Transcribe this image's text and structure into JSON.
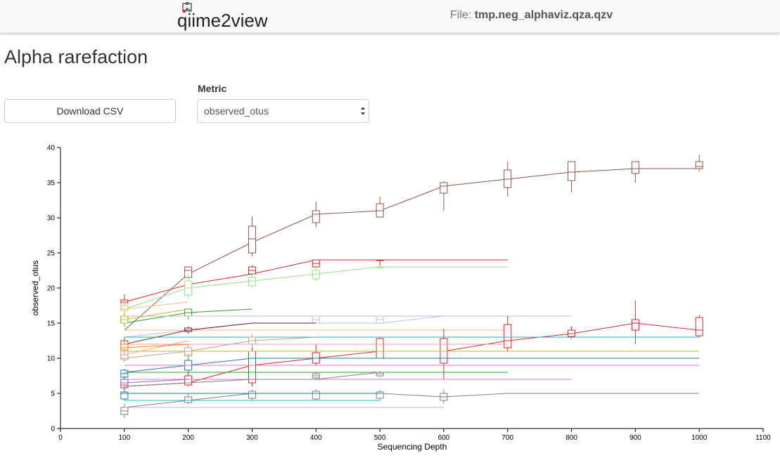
{
  "header": {
    "logo_text": "qiime2view",
    "file_prefix": "File:",
    "file_name": "tmp.neg_alphaviz.qza.qzv"
  },
  "page_title": "Alpha rarefaction",
  "controls": {
    "download_label": "Download CSV",
    "metric_label": "Metric",
    "metric_value": "observed_otus"
  },
  "chart_data": {
    "type": "line",
    "xlabel": "Sequencing Depth",
    "ylabel": "observed_otus",
    "xlim": [
      0,
      1100
    ],
    "ylim": [
      0,
      40
    ],
    "xticks": [
      0,
      100,
      200,
      300,
      400,
      500,
      600,
      700,
      800,
      900,
      1000,
      1100
    ],
    "yticks": [
      0,
      5,
      10,
      15,
      20,
      25,
      30,
      35,
      40
    ],
    "grid": false,
    "box_width": 10,
    "series": [
      {
        "color": "#8c564b",
        "x": [
          100,
          200,
          300,
          400,
          500,
          600,
          700,
          800,
          900,
          1000
        ],
        "y": [
          14,
          22,
          26.5,
          30.5,
          31,
          34.5,
          35.5,
          36.5,
          37,
          37
        ],
        "boxes": [
          [
            null,
            null,
            null,
            null,
            null
          ],
          [
            null,
            21.5,
            22.5,
            23,
            null
          ],
          [
            24.5,
            25,
            27,
            28.8,
            30.2
          ],
          [
            28.7,
            29.3,
            30.5,
            31,
            32.3
          ],
          [
            30,
            30.1,
            31,
            32,
            33
          ],
          [
            31,
            33.5,
            34.5,
            35,
            35.2
          ],
          [
            33,
            34.3,
            35.5,
            36.8,
            38
          ],
          [
            33.6,
            35.3,
            36.5,
            38,
            38
          ],
          [
            35,
            36.3,
            37,
            38,
            38
          ],
          [
            36.6,
            37,
            37.3,
            38,
            39
          ]
        ]
      },
      {
        "color": "#d62728",
        "x": [
          100,
          200,
          300,
          400,
          500,
          600,
          700
        ],
        "y": [
          18,
          20.5,
          22,
          24,
          24,
          24,
          24
        ],
        "boxes": [
          [
            17.5,
            17.8,
            18,
            18.3,
            19.1
          ],
          [
            null,
            null,
            null,
            null,
            null
          ],
          [
            21.5,
            22,
            22.5,
            23,
            23.2
          ],
          [
            null,
            23,
            23.5,
            24,
            24
          ],
          [
            23,
            24,
            24,
            24,
            24
          ],
          [
            null,
            null,
            null,
            null,
            null
          ],
          [
            null,
            null,
            null,
            null,
            null
          ]
        ]
      },
      {
        "color": "#98df8a",
        "x": [
          100,
          200,
          300,
          400,
          500,
          600,
          700
        ],
        "y": [
          17,
          20,
          21,
          22,
          23,
          23,
          23
        ],
        "boxes": [
          [
            16.5,
            16.8,
            17,
            17.8,
            18
          ],
          [
            18.5,
            19,
            20,
            21,
            22
          ],
          [
            20,
            20.3,
            21,
            21.5,
            22
          ],
          [
            21,
            21.3,
            22,
            22.5,
            23
          ],
          [
            22.8,
            23,
            23,
            23,
            23.2
          ],
          [
            null,
            null,
            null,
            null,
            null
          ],
          [
            null,
            null,
            null,
            null,
            null
          ]
        ]
      },
      {
        "color": "#ffbb78",
        "x": [
          100,
          200
        ],
        "y": [
          17,
          18
        ],
        "boxes": [
          [
            16.5,
            16.8,
            17,
            17.5,
            18
          ],
          [
            null,
            null,
            null,
            null,
            null
          ]
        ]
      },
      {
        "color": "#2ca02c",
        "x": [
          100,
          200,
          300
        ],
        "y": [
          15,
          16.5,
          17
        ],
        "boxes": [
          [
            14.5,
            15,
            15.5,
            16,
            16.5
          ],
          [
            15.5,
            16,
            16.5,
            17,
            17
          ]
        ]
      },
      {
        "color": "#c5b0d5",
        "x": [
          100,
          200,
          300,
          400,
          500,
          600,
          700,
          800
        ],
        "y": [
          16,
          16,
          16,
          16,
          16,
          16,
          16,
          16
        ],
        "boxes": []
      },
      {
        "color": "#aec7e8",
        "x": [
          100,
          200,
          300,
          400,
          500,
          600,
          700,
          800
        ],
        "y": [
          13,
          14,
          15,
          15,
          15,
          16,
          16,
          16
        ],
        "boxes": [
          [
            null,
            null,
            null,
            null,
            null
          ],
          [
            null,
            null,
            null,
            null,
            null
          ],
          [
            null,
            null,
            null,
            null,
            null
          ],
          [
            15,
            15,
            15.5,
            16,
            16
          ],
          [
            15,
            15,
            15.5,
            16,
            16
          ]
        ]
      },
      {
        "color": "#ffbb78",
        "x": [
          100,
          200,
          300,
          400,
          500,
          600,
          700
        ],
        "y": [
          14,
          14,
          14,
          14,
          14,
          14,
          14
        ],
        "boxes": []
      },
      {
        "color": "#7f0f3f",
        "x": [
          100,
          200,
          300,
          400
        ],
        "y": [
          12,
          14,
          15,
          15
        ],
        "boxes": [
          [
            null,
            null,
            null,
            null,
            null
          ],
          [
            13.5,
            13.8,
            14,
            14.3,
            14.5
          ]
        ]
      },
      {
        "color": "#d62728",
        "x": [
          100,
          200,
          300,
          400,
          500,
          600,
          700,
          800,
          900,
          1000
        ],
        "y": [
          6,
          6.5,
          9,
          10,
          11,
          11,
          12.5,
          13.5,
          15,
          14
        ],
        "boxes": [
          [
            5.5,
            5.8,
            6.3,
            7,
            7.3
          ],
          [
            6,
            6.2,
            7,
            7.5,
            8
          ],
          [
            6,
            6.5,
            9,
            11,
            11.5
          ],
          [
            9,
            9.3,
            10,
            10.8,
            12
          ],
          [
            10,
            10,
            11,
            12.8,
            13
          ],
          [
            7,
            9.3,
            11,
            12.8,
            14.2
          ],
          [
            11,
            11.5,
            12.5,
            14.8,
            16
          ],
          [
            12.8,
            13.1,
            13.5,
            14,
            14.5
          ],
          [
            12,
            14,
            15,
            15.5,
            18.2
          ],
          [
            13,
            13.2,
            14,
            15.8,
            16.2
          ]
        ]
      },
      {
        "color": "#bcbd22",
        "x": [
          100,
          200,
          300,
          400,
          500,
          600,
          700,
          800,
          900,
          1000
        ],
        "y": [
          11,
          11,
          11,
          11,
          11,
          11,
          11,
          11,
          11,
          11
        ],
        "boxes": [
          [
            10.5,
            10.8,
            11,
            11.5,
            12
          ],
          [
            10,
            10.3,
            10.5,
            11,
            11
          ]
        ]
      },
      {
        "color": "#17becf",
        "x": [
          100,
          200,
          300,
          400,
          500,
          600,
          700,
          800,
          900,
          1000
        ],
        "y": [
          13,
          13,
          13,
          13,
          13,
          13,
          13,
          13,
          13,
          13
        ],
        "boxes": []
      },
      {
        "color": "#1f77b4",
        "x": [
          100,
          200,
          300,
          400,
          500,
          600,
          700,
          800,
          900,
          1000
        ],
        "y": [
          8,
          9,
          10,
          10,
          10,
          10,
          10,
          10,
          10,
          10
        ],
        "boxes": [
          [
            7,
            7.3,
            7.8,
            8.3,
            8.5
          ],
          [
            8,
            8.3,
            9,
            9.7,
            10.2
          ]
        ]
      },
      {
        "color": "#ff9896",
        "x": [
          100,
          200,
          300,
          400,
          500,
          600,
          700
        ],
        "y": [
          12,
          12,
          12,
          12,
          12,
          12,
          12
        ],
        "boxes": []
      },
      {
        "color": "#e377c2",
        "x": [
          100,
          200,
          300,
          400,
          500,
          600,
          700,
          800,
          900,
          1000
        ],
        "y": [
          9,
          9,
          9,
          9,
          9,
          9,
          9,
          9,
          9,
          9
        ],
        "boxes": []
      },
      {
        "color": "#2ca02c",
        "x": [
          100,
          200,
          300,
          400,
          500,
          600,
          700
        ],
        "y": [
          8,
          8,
          8,
          8,
          8,
          8,
          8
        ],
        "boxes": []
      },
      {
        "color": "#e377c2",
        "x": [
          100,
          200,
          300,
          400,
          500,
          600,
          700,
          800
        ],
        "y": [
          7,
          7,
          7,
          7,
          7,
          7,
          7,
          7
        ],
        "boxes": []
      },
      {
        "color": "#7f7f7f",
        "x": [
          100,
          200,
          300,
          400,
          500,
          600,
          700,
          800,
          900,
          1000
        ],
        "y": [
          3,
          4,
          5,
          5,
          5,
          4.5,
          5,
          5,
          5,
          5
        ],
        "boxes": [
          [
            1.5,
            2,
            2.5,
            3,
            3.5
          ],
          [
            3.5,
            3.7,
            4,
            4.5,
            5
          ],
          [
            4,
            4.3,
            5,
            5.3,
            5.5
          ],
          [
            4,
            4.2,
            5,
            5.3,
            5.5
          ],
          [
            4,
            4.3,
            5,
            5.2,
            5.5
          ],
          [
            3.5,
            4,
            4.5,
            5,
            5.5
          ]
        ]
      },
      {
        "color": "#1f77b4",
        "x": [
          100,
          200,
          300,
          400,
          500
        ],
        "y": [
          5,
          5,
          5,
          5,
          5
        ],
        "boxes": [
          [
            4,
            4.2,
            5,
            5.2,
            5.5
          ]
        ]
      },
      {
        "color": "#17becf",
        "x": [
          100,
          200,
          300,
          400,
          500
        ],
        "y": [
          4,
          4,
          4,
          4,
          4
        ],
        "boxes": []
      },
      {
        "color": "#c5b0d5",
        "x": [
          100,
          200,
          300,
          400,
          500,
          600
        ],
        "y": [
          3,
          3,
          3,
          3,
          3,
          3
        ],
        "boxes": []
      },
      {
        "color": "#7f7f7f",
        "x": [
          100,
          200,
          300,
          400,
          500
        ],
        "y": [
          6,
          6.5,
          7,
          7,
          8
        ],
        "boxes": [
          [
            null,
            null,
            null,
            null,
            null
          ],
          [
            null,
            null,
            null,
            null,
            null
          ],
          [
            null,
            null,
            null,
            null,
            null
          ],
          [
            7,
            7.2,
            7.5,
            7.8,
            8
          ],
          [
            7.3,
            7.5,
            7.8,
            8,
            8.2
          ]
        ]
      },
      {
        "color": "#8c564b",
        "x": [
          100,
          200
        ],
        "y": [
          12,
          14
        ],
        "boxes": [
          [
            11,
            11.5,
            12,
            12.5,
            13
          ]
        ]
      },
      {
        "color": "#ff9896",
        "x": [
          100,
          200
        ],
        "y": [
          10.5,
          12.5
        ],
        "boxes": [
          [
            9.5,
            10,
            10.5,
            11,
            11.5
          ]
        ]
      },
      {
        "color": "#bcbd22",
        "x": [
          100,
          200
        ],
        "y": [
          15.5,
          17
        ],
        "boxes": [
          [
            14.5,
            15,
            15.5,
            16,
            16.5
          ]
        ]
      },
      {
        "color": "#c49c94",
        "x": [
          100,
          200,
          300,
          400
        ],
        "y": [
          10,
          11,
          12.5,
          13
        ],
        "boxes": [
          [
            9.5,
            9.8,
            10,
            10.5,
            11
          ],
          [
            10,
            10.5,
            11,
            11.5,
            12
          ],
          [
            11.5,
            12,
            12.5,
            13,
            13.5
          ]
        ]
      },
      {
        "color": "#9467bd",
        "x": [
          100,
          200
        ],
        "y": [
          6.5,
          7
        ],
        "boxes": [
          [
            6,
            6.2,
            6.5,
            7,
            7.5
          ]
        ]
      },
      {
        "color": "#ff7f0e",
        "x": [
          100,
          200
        ],
        "y": [
          11.5,
          12
        ],
        "boxes": [
          [
            11,
            11.2,
            11.5,
            12,
            12.5
          ]
        ]
      }
    ]
  }
}
